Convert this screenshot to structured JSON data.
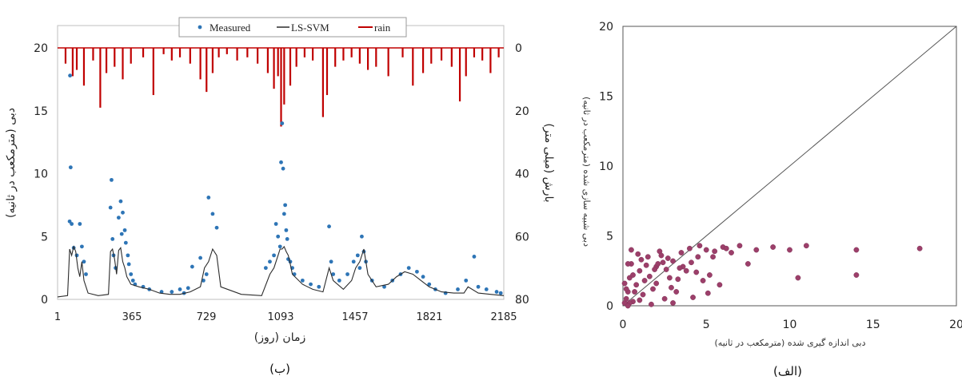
{
  "chart_data": [
    {
      "type": "line",
      "caption": "(ب)",
      "xlabel": "زمان (روز)",
      "ylabel": "دبی (مترمکعب در ثانیه)",
      "ylabel_right": "بارش (میلی متر)",
      "xticks": [
        1,
        365,
        729,
        1093,
        1457,
        1821,
        2185
      ],
      "xlim": [
        1,
        2185
      ],
      "ylim": [
        0,
        20
      ],
      "yticks": [
        0,
        5,
        10,
        15,
        20
      ],
      "y2lim": [
        0,
        80
      ],
      "y2ticks": [
        0,
        20,
        40,
        60,
        80
      ],
      "y2_inverted": true,
      "legend": [
        "Measured",
        "LS-SVM",
        "rain"
      ],
      "legend_position": "top-center",
      "colors": {
        "measured": "#2e75b6",
        "lssvm": "#2b2b2b",
        "rain": "#c00000"
      },
      "series": [
        {
          "name": "Measured",
          "type": "scatter",
          "x": [
            60,
            62,
            65,
            70,
            80,
            95,
            110,
            120,
            130,
            140,
            260,
            265,
            270,
            275,
            285,
            300,
            310,
            315,
            320,
            330,
            335,
            345,
            350,
            360,
            370,
            380,
            420,
            450,
            510,
            560,
            600,
            620,
            640,
            660,
            700,
            715,
            730,
            740,
            760,
            780,
            1020,
            1040,
            1060,
            1070,
            1080,
            1090,
            1095,
            1100,
            1105,
            1110,
            1115,
            1120,
            1125,
            1130,
            1140,
            1150,
            1160,
            1200,
            1240,
            1280,
            1330,
            1340,
            1350,
            1380,
            1420,
            1450,
            1470,
            1480,
            1490,
            1500,
            1510,
            1540,
            1600,
            1640,
            1680,
            1720,
            1760,
            1790,
            1820,
            1850,
            1900,
            1960,
            2000,
            2040,
            2060,
            2100,
            2150,
            2170
          ],
          "y": [
            6.2,
            17.8,
            10.5,
            6.0,
            4.1,
            3.5,
            6.0,
            4.2,
            3.0,
            2.0,
            7.3,
            9.5,
            4.8,
            3.5,
            2.5,
            6.5,
            7.8,
            5.2,
            6.9,
            5.5,
            4.5,
            3.5,
            2.8,
            2.0,
            1.5,
            1.2,
            1.0,
            0.8,
            0.6,
            0.6,
            0.8,
            0.5,
            0.9,
            2.6,
            3.3,
            1.5,
            2.0,
            8.1,
            6.8,
            5.7,
            2.5,
            3.0,
            3.5,
            6.0,
            5.0,
            4.2,
            10.9,
            14.0,
            10.4,
            6.8,
            7.5,
            5.5,
            4.8,
            3.2,
            3.0,
            2.5,
            2.0,
            1.5,
            1.2,
            1.0,
            5.8,
            3.0,
            2.0,
            1.5,
            2.0,
            3.0,
            3.5,
            2.5,
            5.0,
            3.8,
            3.0,
            1.5,
            1.0,
            1.5,
            2.0,
            2.5,
            2.2,
            1.8,
            1.2,
            0.8,
            0.5,
            0.8,
            1.5,
            3.4,
            1.0,
            0.8,
            0.6,
            0.5
          ]
        },
        {
          "name": "LS-SVM",
          "type": "line",
          "x": [
            1,
            50,
            60,
            70,
            80,
            90,
            100,
            110,
            120,
            130,
            150,
            200,
            250,
            260,
            270,
            280,
            290,
            300,
            310,
            320,
            330,
            340,
            350,
            360,
            400,
            450,
            500,
            550,
            600,
            650,
            700,
            720,
            740,
            760,
            780,
            800,
            900,
            1000,
            1040,
            1060,
            1080,
            1090,
            1100,
            1110,
            1120,
            1130,
            1140,
            1150,
            1200,
            1250,
            1300,
            1330,
            1350,
            1400,
            1440,
            1460,
            1480,
            1500,
            1520,
            1560,
            1620,
            1660,
            1700,
            1740,
            1780,
            1820,
            1880,
            1940,
            1990,
            2010,
            2060,
            2120,
            2185
          ],
          "y": [
            0.2,
            0.3,
            4.0,
            3.5,
            4.2,
            3.8,
            2.5,
            1.8,
            3.0,
            1.5,
            0.5,
            0.3,
            0.4,
            3.8,
            4.0,
            3.2,
            2.0,
            3.9,
            4.1,
            3.0,
            2.5,
            1.8,
            1.5,
            1.2,
            1.0,
            0.8,
            0.5,
            0.4,
            0.4,
            0.6,
            1.0,
            2.5,
            3.0,
            4.0,
            3.5,
            1.0,
            0.4,
            0.3,
            2.0,
            2.5,
            3.5,
            4.0,
            4.0,
            4.2,
            3.8,
            3.5,
            2.8,
            2.0,
            1.2,
            0.8,
            0.6,
            2.5,
            1.5,
            0.8,
            1.5,
            2.5,
            3.0,
            4.0,
            2.0,
            1.0,
            1.2,
            1.8,
            2.2,
            2.0,
            1.5,
            1.0,
            0.6,
            0.5,
            0.5,
            1.0,
            0.5,
            0.4,
            0.3
          ]
        },
        {
          "name": "rain",
          "type": "bar",
          "x": [
            40,
            75,
            95,
            130,
            175,
            210,
            240,
            280,
            320,
            360,
            420,
            470,
            520,
            560,
            600,
            650,
            700,
            730,
            760,
            790,
            830,
            880,
            930,
            980,
            1030,
            1060,
            1080,
            1095,
            1110,
            1140,
            1170,
            1210,
            1250,
            1300,
            1320,
            1360,
            1400,
            1440,
            1480,
            1520,
            1560,
            1620,
            1690,
            1740,
            1790,
            1830,
            1880,
            1930,
            1970,
            2000,
            2040,
            2080,
            2120,
            2160
          ],
          "y": [
            5,
            9,
            7,
            12,
            4,
            19,
            8,
            6,
            10,
            5,
            3,
            15,
            2,
            4,
            3,
            5,
            10,
            14,
            8,
            3,
            2,
            4,
            3,
            5,
            8,
            13,
            9,
            25,
            18,
            12,
            6,
            3,
            4,
            22,
            15,
            6,
            4,
            3,
            5,
            7,
            6,
            9,
            3,
            12,
            8,
            5,
            4,
            6,
            17,
            9,
            3,
            4,
            8,
            3
          ]
        }
      ]
    },
    {
      "type": "scatter",
      "caption": "(الف)",
      "xlabel": "دبی اندازه گیری شده (مترمکعب در ثانیه)",
      "ylabel": "دبی شبیه سازی شده (مترمکعب در ثانیه)",
      "xlim": [
        0,
        20
      ],
      "ylim": [
        0,
        20
      ],
      "xticks": [
        0,
        5,
        10,
        15,
        20
      ],
      "yticks": [
        0,
        5,
        10,
        15,
        20
      ],
      "colors": {
        "points": "#9c3f6a",
        "line": "#555555"
      },
      "reference_line": [
        [
          0,
          0
        ],
        [
          20,
          20
        ]
      ],
      "series": [
        {
          "name": "",
          "x": [
            0.1,
            0.2,
            0.3,
            0.4,
            0.5,
            0.6,
            0.8,
            1.0,
            1.2,
            1.5,
            1.8,
            2.0,
            2.2,
            2.5,
            2.8,
            3.0,
            3.2,
            3.5,
            3.8,
            4.0,
            4.2,
            4.5,
            4.8,
            5.0,
            5.2,
            5.5,
            5.8,
            6.0,
            6.5,
            7.0,
            7.5,
            8.0,
            9.0,
            10.0,
            10.5,
            11.0,
            14.0,
            14.0,
            17.8,
            0.2,
            0.4,
            0.6,
            1.0,
            1.4,
            2.0,
            2.6,
            3.0,
            3.6,
            4.1,
            4.6,
            5.4,
            6.2,
            0.3,
            0.7,
            1.1,
            1.6,
            2.3,
            2.9,
            3.4,
            0.5,
            1.3,
            2.1,
            2.7,
            1.7,
            0.9,
            0.1,
            0.3,
            3.3,
            4.4,
            5.1,
            1.9,
            2.4
          ],
          "y": [
            0.2,
            0.5,
            1.0,
            2.0,
            3.0,
            0.3,
            1.5,
            2.5,
            0.8,
            3.5,
            1.2,
            2.8,
            3.9,
            0.5,
            2.0,
            3.2,
            1.0,
            3.8,
            2.5,
            4.1,
            0.6,
            3.5,
            1.8,
            4.0,
            2.2,
            3.9,
            1.5,
            4.2,
            3.8,
            4.3,
            3.0,
            4.0,
            4.2,
            4.0,
            2.0,
            4.3,
            4.0,
            2.2,
            4.1,
            1.2,
            0.2,
            2.2,
            0.4,
            2.9,
            1.6,
            2.6,
            0.2,
            2.8,
            3.1,
            4.3,
            3.5,
            4.1,
            3.0,
            1.0,
            3.3,
            2.1,
            3.6,
            1.3,
            2.7,
            4.0,
            1.8,
            3.0,
            3.4,
            0.1,
            3.7,
            1.6,
            0.0,
            1.9,
            2.4,
            0.9,
            2.6,
            3.1
          ]
        }
      ]
    }
  ]
}
